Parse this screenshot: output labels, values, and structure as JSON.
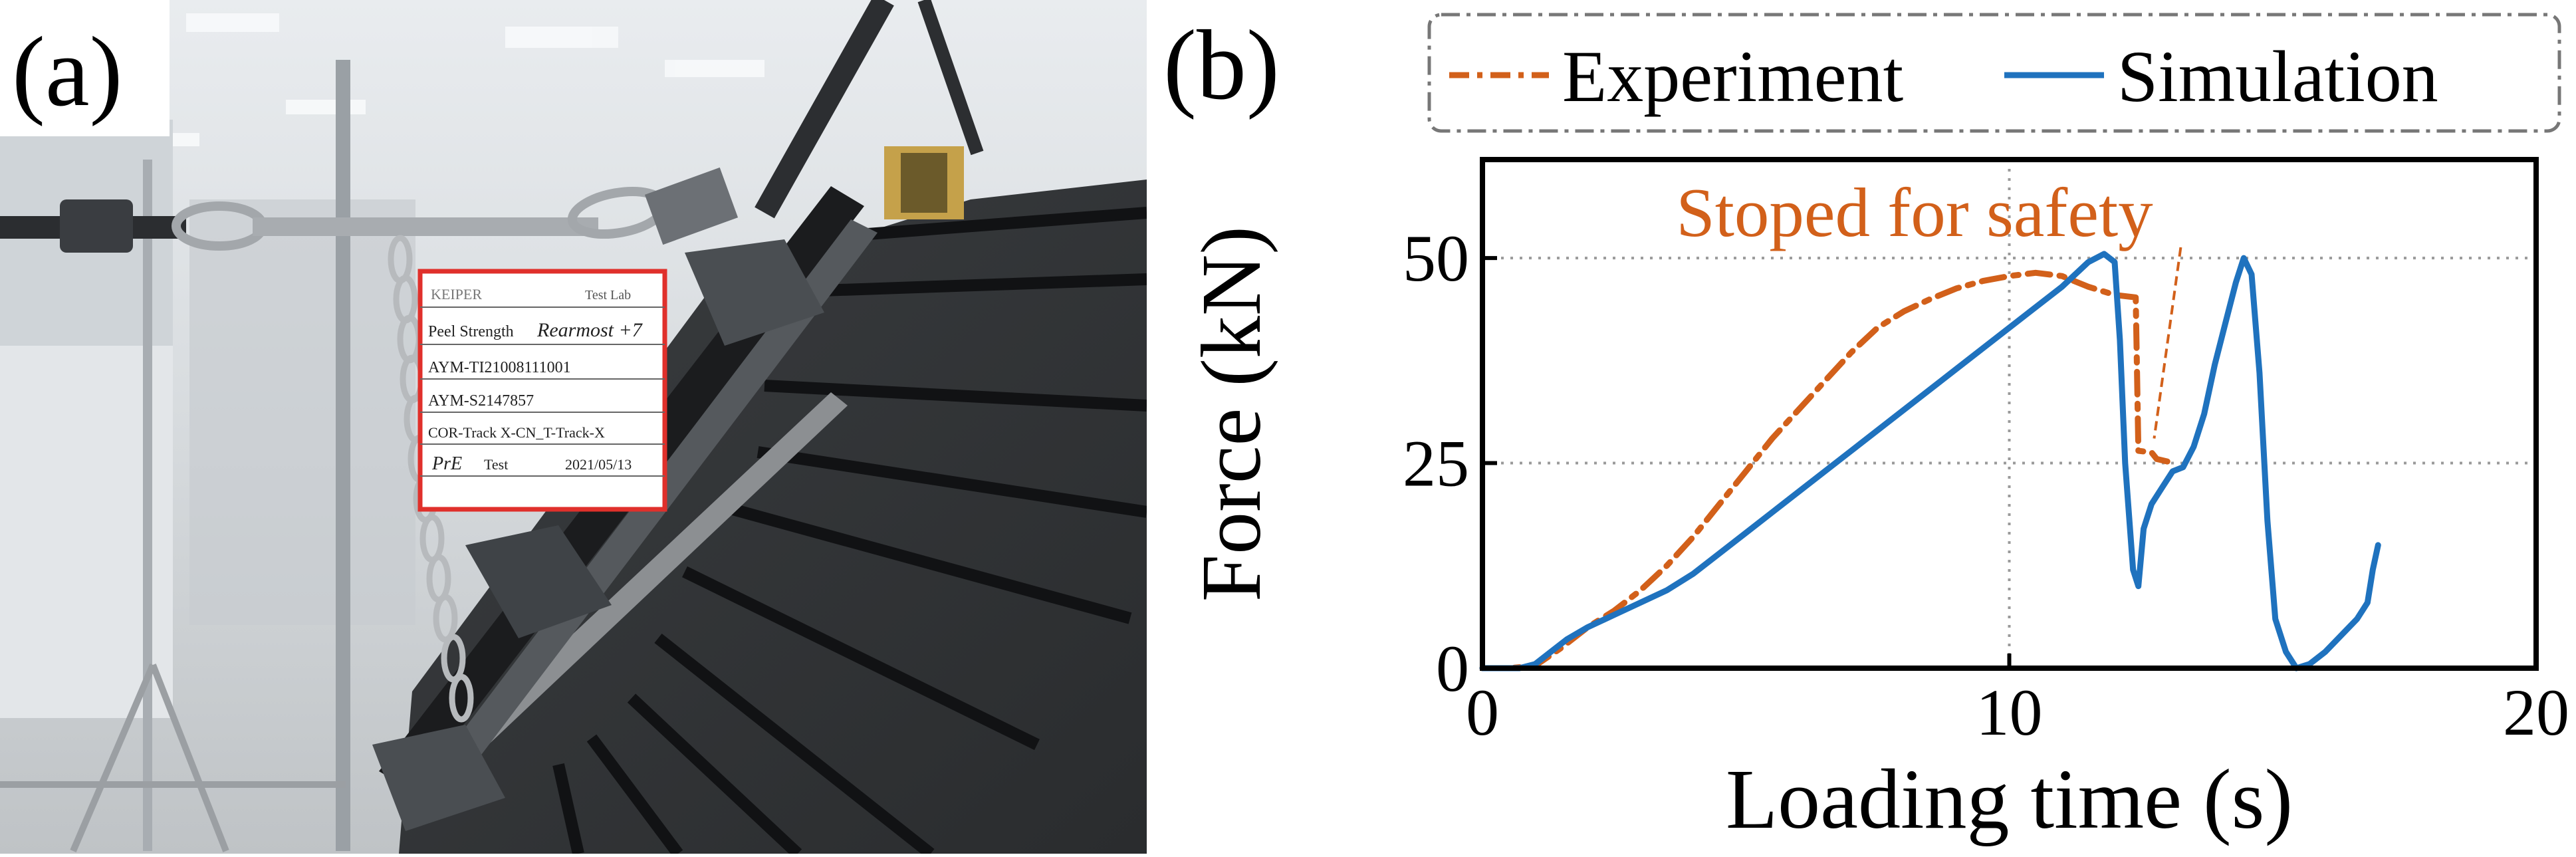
{
  "panel_a": {
    "label": "(a)",
    "sign": {
      "company": "KEIPER",
      "lab": "Test Lab",
      "test_name": "Peel Strength",
      "handwritten_note": "Rearmost +7",
      "line2": "AYM-TI21008111001",
      "line3": "AYM-S2147857",
      "line4": "COR-Track X-CN_T-Track-X",
      "line5_hand": "PrE",
      "line5": "Test",
      "date": "2021/05/13"
    }
  },
  "panel_b": {
    "label": "(b)",
    "annotation": "Stoped for safety"
  },
  "colors": {
    "experiment": "#D2601A",
    "simulation": "#1F72BE",
    "grid": "#9a9a9a",
    "legend_border": "#777777"
  },
  "chart_data": {
    "type": "line",
    "xlabel": "Loading time (s)",
    "ylabel": "Force (kN)",
    "xlim": [
      0,
      20
    ],
    "ylim": [
      0,
      62
    ],
    "xticks": [
      0,
      10,
      20
    ],
    "yticks": [
      0,
      25,
      50
    ],
    "grid": true,
    "legend_position": "top, outside plot",
    "series": [
      {
        "name": "Experiment",
        "style": "dash-dot",
        "color": "#D2601A",
        "points": [
          [
            0,
            0
          ],
          [
            0.5,
            0
          ],
          [
            1,
            0.3
          ],
          [
            1.5,
            2.5
          ],
          [
            2,
            5
          ],
          [
            2.5,
            7
          ],
          [
            3,
            9.5
          ],
          [
            3.5,
            12.5
          ],
          [
            4,
            16
          ],
          [
            4.5,
            20
          ],
          [
            5,
            24
          ],
          [
            5.5,
            28
          ],
          [
            6,
            31.5
          ],
          [
            6.5,
            35
          ],
          [
            7,
            38.5
          ],
          [
            7.5,
            41.5
          ],
          [
            8,
            43.5
          ],
          [
            8.5,
            45
          ],
          [
            9,
            46.3
          ],
          [
            9.5,
            47.2
          ],
          [
            10,
            47.8
          ],
          [
            10.5,
            48.2
          ],
          [
            11,
            47.8
          ],
          [
            11.5,
            46.5
          ],
          [
            12,
            45.5
          ],
          [
            12.4,
            45.2
          ],
          [
            12.45,
            26.5
          ],
          [
            12.7,
            26.3
          ],
          [
            12.8,
            25.5
          ],
          [
            13,
            25.2
          ]
        ]
      },
      {
        "name": "Simulation",
        "style": "solid",
        "color": "#1F72BE",
        "points": [
          [
            0,
            0
          ],
          [
            0.7,
            0
          ],
          [
            1,
            0.5
          ],
          [
            1.3,
            2
          ],
          [
            1.6,
            3.5
          ],
          [
            2,
            5
          ],
          [
            2.5,
            6.5
          ],
          [
            3,
            8
          ],
          [
            3.5,
            9.5
          ],
          [
            4,
            11.5
          ],
          [
            5,
            16.5
          ],
          [
            6,
            21.5
          ],
          [
            7,
            26.5
          ],
          [
            8,
            31.5
          ],
          [
            9,
            36.5
          ],
          [
            10,
            41.5
          ],
          [
            11,
            46.5
          ],
          [
            11.5,
            49.5
          ],
          [
            11.8,
            50.5
          ],
          [
            12,
            49.5
          ],
          [
            12.1,
            40
          ],
          [
            12.2,
            25
          ],
          [
            12.35,
            12
          ],
          [
            12.45,
            10
          ],
          [
            12.55,
            17
          ],
          [
            12.7,
            20
          ],
          [
            12.9,
            22
          ],
          [
            13.1,
            24
          ],
          [
            13.3,
            24.5
          ],
          [
            13.5,
            27
          ],
          [
            13.7,
            31
          ],
          [
            13.9,
            37
          ],
          [
            14.1,
            42
          ],
          [
            14.3,
            47
          ],
          [
            14.45,
            50
          ],
          [
            14.6,
            48
          ],
          [
            14.75,
            36
          ],
          [
            14.9,
            18
          ],
          [
            15.05,
            6
          ],
          [
            15.25,
            2
          ],
          [
            15.45,
            0
          ],
          [
            15.7,
            0.5
          ],
          [
            16,
            2
          ],
          [
            16.3,
            4
          ],
          [
            16.6,
            6
          ],
          [
            16.8,
            8
          ],
          [
            16.9,
            12
          ],
          [
            17,
            15
          ]
        ]
      }
    ]
  }
}
